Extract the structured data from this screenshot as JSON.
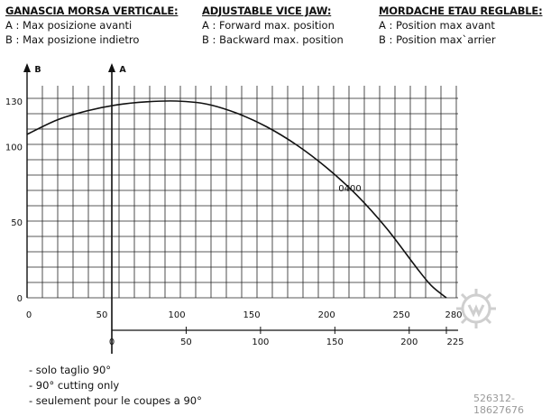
{
  "headers": [
    {
      "title": "GANASCIA MORSA VERTICALE:",
      "line_a": "A : Max posizione avanti",
      "line_b": "B : Max posizione indietro"
    },
    {
      "title": "ADJUSTABLE VICE JAW:",
      "line_a": "A : Forward max. position",
      "line_b": "B : Backward max. position"
    },
    {
      "title": "MORDACHE ETAU REGLABLE:",
      "line_a": "A : Position max avant",
      "line_b": "B : Position max`arrier"
    }
  ],
  "notes": [
    "- solo taglio 90°",
    "- 90° cutting only",
    "- seulement pour le coupes a 90°"
  ],
  "watermark": "526312-18627676",
  "chart_data": {
    "type": "line",
    "axis_markers": {
      "b": "B",
      "a": "A"
    },
    "y_ticks": [
      0,
      50,
      100,
      130
    ],
    "ylim": [
      0,
      140
    ],
    "x_axis_b": {
      "ticks": [
        0,
        50,
        100,
        150,
        200,
        250,
        280
      ],
      "range": [
        0,
        280
      ]
    },
    "x_axis_a": {
      "ticks": [
        0,
        50,
        100,
        150,
        200,
        225
      ],
      "range": [
        0,
        225
      ]
    },
    "grid": true,
    "series": [
      {
        "name": "0400",
        "x_b": [
          0,
          20,
          40,
          60,
          80,
          100,
          120,
          140,
          160,
          180,
          200,
          220,
          240,
          260,
          270,
          280
        ],
        "y": [
          108,
          117.5,
          123.5,
          127.5,
          129.5,
          130,
          128,
          122,
          113,
          101,
          86,
          68,
          46,
          20,
          8,
          0
        ]
      }
    ]
  }
}
